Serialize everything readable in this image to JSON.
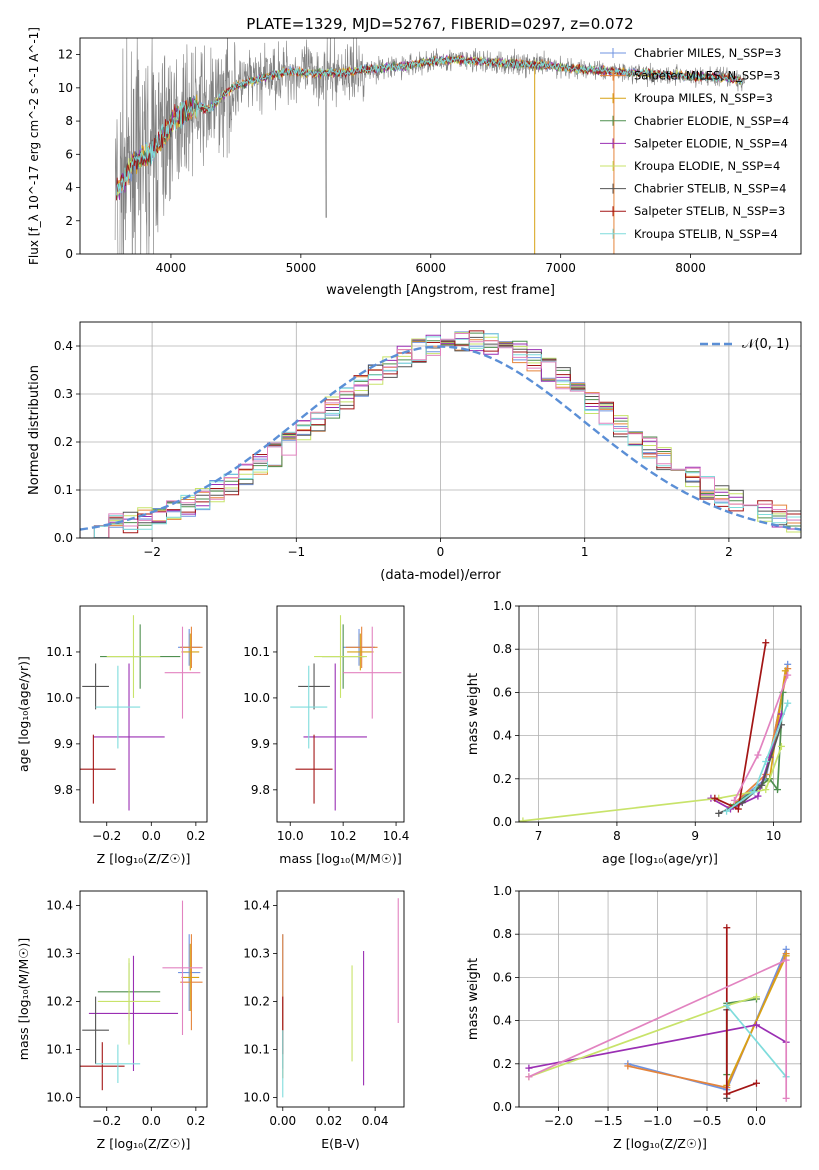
{
  "figure_title": "PLATE=1329, MJD=52767, FIBERID=0297, z=0.072",
  "colors": {
    "c_miles": "#6f93e0",
    "s_miles": "#e5843b",
    "k_miles": "#d7a216",
    "c_elodie": "#4f8f4f",
    "s_elodie": "#9a2fb3",
    "k_elodie": "#c8e36a",
    "c_stelib": "#555555",
    "s_stelib": "#a31515",
    "k_stelib": "#7fdcdc",
    "pink": "#e283c0",
    "gaussian": "#5b8fd6",
    "data_spectrum": "#808080"
  },
  "chart_data": [
    {
      "id": "spectrum",
      "type": "line",
      "title": "PLATE=1329, MJD=52767, FIBERID=0297, z=0.072",
      "xlabel": "wavelength [Angstrom, rest frame]",
      "ylabel": "Flux [f_λ 10^-17 erg cm^-2 s^-1 A^-1]",
      "xlim": [
        3300,
        8850
      ],
      "ylim": [
        0,
        13
      ],
      "xticks": [
        "4000",
        "5000",
        "6000",
        "7000",
        "8000"
      ],
      "yticks": [
        "0",
        "2",
        "4",
        "6",
        "8",
        "10",
        "12"
      ],
      "grid": false,
      "legend_position": "right",
      "legend": [
        {
          "label": "Chabrier MILES, N_SSP=3",
          "color": "#6f93e0"
        },
        {
          "label": "Salpeter MILES, N_SSP=3",
          "color": "#e5843b"
        },
        {
          "label": "Kroupa MILES, N_SSP=3",
          "color": "#d7a216"
        },
        {
          "label": "Chabrier ELODIE, N_SSP=4",
          "color": "#4f8f4f"
        },
        {
          "label": "Salpeter ELODIE, N_SSP=4",
          "color": "#9a2fb3"
        },
        {
          "label": "Kroupa ELODIE, N_SSP=4",
          "color": "#c8e36a"
        },
        {
          "label": "Chabrier STELIB, N_SSP=4",
          "color": "#555555"
        },
        {
          "label": "Salpeter STELIB, N_SSP=3",
          "color": "#a31515"
        },
        {
          "label": "Kroupa STELIB, N_SSP=4",
          "color": "#7fdcdc"
        }
      ],
      "continuum": {
        "wavelength": [
          3580,
          3650,
          3700,
          3800,
          3850,
          3900,
          3950,
          4000,
          4100,
          4200,
          4300,
          4400,
          4500,
          4700,
          4900,
          5100,
          5300,
          5500,
          5800,
          6000,
          6200,
          6500,
          6800,
          7200,
          7600,
          8000,
          8300,
          8400
        ],
        "flux": [
          3.8,
          4.6,
          5.5,
          5.8,
          6.2,
          6.6,
          7.2,
          7.8,
          8.6,
          8.9,
          8.7,
          9.6,
          10.1,
          10.6,
          11.0,
          10.9,
          10.9,
          11.1,
          11.3,
          11.6,
          11.7,
          11.5,
          11.4,
          11.1,
          10.9,
          10.7,
          10.6,
          10.4
        ]
      }
    },
    {
      "id": "residuals",
      "type": "step",
      "xlabel": "(data-model)/error",
      "ylabel": "Normed distribution",
      "xlim": [
        -2.5,
        2.5
      ],
      "ylim": [
        0,
        0.45
      ],
      "xticks": [
        "−2",
        "−1",
        "0",
        "1",
        "2"
      ],
      "yticks": [
        "0.0",
        "0.1",
        "0.2",
        "0.3",
        "0.4"
      ],
      "grid": true,
      "legend": [
        {
          "label": "𝒩(0, 1)",
          "color": "#5b8fd6"
        }
      ],
      "curve": "standard normal pdf",
      "bin_width": 0.1
    },
    {
      "id": "age_vs_Z",
      "type": "errorbar",
      "xlabel": "Z [log₁₀(Z/Z☉)]",
      "ylabel": "age  [log₁₀(age/yr)]",
      "xlim": [
        -0.32,
        0.25
      ],
      "ylim": [
        9.73,
        10.2
      ],
      "xticks": [
        "−0.2",
        "0.0",
        "0.2"
      ],
      "yticks": [
        "9.8",
        "9.9",
        "10.0",
        "10.1"
      ],
      "points": [
        {
          "x": 0.17,
          "y": 10.11,
          "xerr": 0.05,
          "yerr": 0.04,
          "color": "#6f93e0"
        },
        {
          "x": 0.18,
          "y": 10.11,
          "xerr": 0.05,
          "yerr": 0.045,
          "color": "#e5843b"
        },
        {
          "x": 0.175,
          "y": 10.1,
          "xerr": 0.04,
          "yerr": 0.04,
          "color": "#d7a216"
        },
        {
          "x": -0.05,
          "y": 10.09,
          "xerr": 0.18,
          "yerr": 0.07,
          "color": "#4f8f4f"
        },
        {
          "x": -0.1,
          "y": 9.915,
          "xerr": 0.16,
          "yerr": 0.16,
          "color": "#9a2fb3"
        },
        {
          "x": -0.08,
          "y": 10.09,
          "xerr": 0.12,
          "yerr": 0.09,
          "color": "#c8e36a"
        },
        {
          "x": -0.25,
          "y": 10.025,
          "xerr": 0.06,
          "yerr": 0.05,
          "color": "#555555"
        },
        {
          "x": -0.26,
          "y": 9.845,
          "xerr": 0.1,
          "yerr": 0.075,
          "color": "#a31515"
        },
        {
          "x": -0.15,
          "y": 9.98,
          "xerr": 0.1,
          "yerr": 0.09,
          "color": "#7fdcdc"
        },
        {
          "x": 0.14,
          "y": 10.055,
          "xerr": 0.08,
          "yerr": 0.1,
          "color": "#e283c0"
        }
      ]
    },
    {
      "id": "age_vs_mass",
      "type": "errorbar",
      "xlabel": "mass [log₁₀(M/M☉)]",
      "ylabel": "",
      "xlim": [
        9.95,
        10.43
      ],
      "ylim": [
        9.73,
        10.2
      ],
      "xticks": [
        "10.0",
        "10.2",
        "10.4"
      ],
      "yticks": [
        "9.8",
        "9.9",
        "10.0",
        "10.1"
      ],
      "points": [
        {
          "x": 10.26,
          "y": 10.11,
          "xerr": 0.06,
          "yerr": 0.04,
          "color": "#6f93e0"
        },
        {
          "x": 10.27,
          "y": 10.11,
          "xerr": 0.06,
          "yerr": 0.045,
          "color": "#e5843b"
        },
        {
          "x": 10.265,
          "y": 10.1,
          "xerr": 0.05,
          "yerr": 0.04,
          "color": "#d7a216"
        },
        {
          "x": 10.2,
          "y": 10.09,
          "xerr": 0.08,
          "yerr": 0.07,
          "color": "#4f8f4f"
        },
        {
          "x": 10.17,
          "y": 9.915,
          "xerr": 0.12,
          "yerr": 0.16,
          "color": "#9a2fb3"
        },
        {
          "x": 10.19,
          "y": 10.09,
          "xerr": 0.1,
          "yerr": 0.09,
          "color": "#c8e36a"
        },
        {
          "x": 10.09,
          "y": 10.025,
          "xerr": 0.06,
          "yerr": 0.05,
          "color": "#555555"
        },
        {
          "x": 10.09,
          "y": 9.845,
          "xerr": 0.07,
          "yerr": 0.075,
          "color": "#a31515"
        },
        {
          "x": 10.07,
          "y": 9.98,
          "xerr": 0.07,
          "yerr": 0.09,
          "color": "#7fdcdc"
        },
        {
          "x": 10.31,
          "y": 10.055,
          "xerr": 0.11,
          "yerr": 0.1,
          "color": "#e283c0"
        }
      ]
    },
    {
      "id": "massweight_vs_age",
      "type": "line",
      "xlabel": "age  [log₁₀(age/yr)]",
      "ylabel": "mass weight",
      "xlim": [
        6.75,
        10.35
      ],
      "ylim": [
        0,
        1
      ],
      "xticks": [
        "7",
        "8",
        "9",
        "10"
      ],
      "yticks": [
        "0.0",
        "0.2",
        "0.4",
        "0.6",
        "0.8",
        "1.0"
      ],
      "grid": true,
      "series": [
        {
          "color": "#6f93e0",
          "x": [
            9.45,
            9.9,
            10.18
          ],
          "y": [
            0.07,
            0.2,
            0.73
          ]
        },
        {
          "color": "#e5843b",
          "x": [
            9.45,
            9.9,
            10.18
          ],
          "y": [
            0.07,
            0.22,
            0.71
          ]
        },
        {
          "color": "#d7a216",
          "x": [
            9.5,
            9.95,
            10.15
          ],
          "y": [
            0.08,
            0.2,
            0.7
          ]
        },
        {
          "color": "#4f8f4f",
          "x": [
            9.5,
            9.95,
            10.05,
            10.12
          ],
          "y": [
            0.08,
            0.2,
            0.15,
            0.6
          ]
        },
        {
          "color": "#9a2fb3",
          "x": [
            9.2,
            9.45,
            9.8,
            9.95,
            10.1
          ],
          "y": [
            0.11,
            0.06,
            0.12,
            0.3,
            0.5
          ]
        },
        {
          "color": "#c8e36a",
          "x": [
            6.8,
            9.3,
            9.9,
            10.1
          ],
          "y": [
            0.005,
            0.11,
            0.15,
            0.35
          ]
        },
        {
          "color": "#555555",
          "x": [
            9.3,
            9.6,
            9.85,
            10.1
          ],
          "y": [
            0.04,
            0.09,
            0.17,
            0.45
          ]
        },
        {
          "color": "#a31515",
          "x": [
            9.25,
            9.55,
            9.9
          ],
          "y": [
            0.11,
            0.06,
            0.83
          ]
        },
        {
          "color": "#7fdcdc",
          "x": [
            9.4,
            9.75,
            9.9,
            10.18
          ],
          "y": [
            0.05,
            0.14,
            0.28,
            0.55
          ]
        },
        {
          "color": "#e283c0",
          "x": [
            9.5,
            9.8,
            10.18
          ],
          "y": [
            0.1,
            0.31,
            0.68
          ]
        }
      ]
    },
    {
      "id": "mass_vs_Z",
      "type": "errorbar",
      "xlabel": "Z [log₁₀(Z/Z☉)]",
      "ylabel": "mass [log₁₀(M/M☉)]",
      "xlim": [
        -0.32,
        0.25
      ],
      "ylim": [
        9.98,
        10.43
      ],
      "xticks": [
        "−0.2",
        "0.0",
        "0.2"
      ],
      "yticks": [
        "10.0",
        "10.1",
        "10.2",
        "10.3",
        "10.4"
      ],
      "points": [
        {
          "x": 0.17,
          "y": 10.26,
          "xerr": 0.05,
          "yerr": 0.08,
          "color": "#6f93e0"
        },
        {
          "x": 0.18,
          "y": 10.24,
          "xerr": 0.05,
          "yerr": 0.1,
          "color": "#e5843b"
        },
        {
          "x": 0.175,
          "y": 10.25,
          "xerr": 0.04,
          "yerr": 0.07,
          "color": "#d7a216"
        },
        {
          "x": -0.1,
          "y": 10.22,
          "xerr": 0.14,
          "yerr": 0.06,
          "color": "#4f8f4f"
        },
        {
          "x": -0.08,
          "y": 10.175,
          "xerr": 0.2,
          "yerr": 0.12,
          "color": "#9a2fb3"
        },
        {
          "x": -0.1,
          "y": 10.2,
          "xerr": 0.14,
          "yerr": 0.09,
          "color": "#c8e36a"
        },
        {
          "x": -0.25,
          "y": 10.14,
          "xerr": 0.06,
          "yerr": 0.07,
          "color": "#555555"
        },
        {
          "x": -0.22,
          "y": 10.065,
          "xerr": 0.1,
          "yerr": 0.05,
          "color": "#a31515"
        },
        {
          "x": -0.15,
          "y": 10.07,
          "xerr": 0.1,
          "yerr": 0.04,
          "color": "#7fdcdc"
        },
        {
          "x": 0.14,
          "y": 10.27,
          "xerr": 0.09,
          "yerr": 0.14,
          "color": "#e283c0"
        }
      ]
    },
    {
      "id": "mass_vs_ebv",
      "type": "errorbar",
      "xlabel": "E(B-V)",
      "ylabel": "",
      "xlim": [
        -0.0025,
        0.0525
      ],
      "ylim": [
        9.98,
        10.43
      ],
      "xticks": [
        "0.00",
        "0.02",
        "0.04"
      ],
      "yticks": [
        "10.0",
        "10.1",
        "10.2",
        "10.3",
        "10.4"
      ],
      "points": [
        {
          "x": 0.0,
          "y": 10.2,
          "xerr": 0,
          "yerr": 0.14,
          "color": "#6f93e0"
        },
        {
          "x": 0.0,
          "y": 10.19,
          "xerr": 0,
          "yerr": 0.15,
          "color": "#e5843b"
        },
        {
          "x": 0.0,
          "y": 10.15,
          "xerr": 0,
          "yerr": 0.06,
          "color": "#a31515"
        },
        {
          "x": 0.0,
          "y": 10.07,
          "xerr": 0,
          "yerr": 0.07,
          "color": "#7fdcdc"
        },
        {
          "x": 0.03,
          "y": 10.175,
          "xerr": 0,
          "yerr": 0.1,
          "color": "#c8e36a"
        },
        {
          "x": 0.035,
          "y": 10.165,
          "xerr": 0,
          "yerr": 0.14,
          "color": "#9a2fb3"
        },
        {
          "x": 0.05,
          "y": 10.285,
          "xerr": 0,
          "yerr": 0.13,
          "color": "#e283c0"
        }
      ]
    },
    {
      "id": "massweight_vs_Z",
      "type": "line",
      "xlabel": "Z [log₁₀(Z/Z☉)]",
      "ylabel": "mass weight",
      "xlim": [
        -2.4,
        0.45
      ],
      "ylim": [
        0,
        1
      ],
      "xticks": [
        "−2.0",
        "−1.5",
        "−1.0",
        "−0.5",
        "0.0"
      ],
      "yticks": [
        "0.0",
        "0.2",
        "0.4",
        "0.6",
        "0.8",
        "1.0"
      ],
      "grid": true,
      "series": [
        {
          "color": "#6f93e0",
          "x": [
            -1.3,
            -0.3,
            0.3
          ],
          "y": [
            0.2,
            0.08,
            0.73
          ]
        },
        {
          "color": "#e5843b",
          "x": [
            -1.3,
            -0.3,
            0.3
          ],
          "y": [
            0.19,
            0.09,
            0.71
          ]
        },
        {
          "color": "#d7a216",
          "x": [
            -0.3,
            0.3
          ],
          "y": [
            0.1,
            0.7
          ]
        },
        {
          "color": "#4f8f4f",
          "x": [
            -0.3,
            -0.3,
            0.0
          ],
          "y": [
            0.15,
            0.48,
            0.5
          ]
        },
        {
          "color": "#9a2fb3",
          "x": [
            -2.3,
            0.0,
            0.3
          ],
          "y": [
            0.18,
            0.38,
            0.3
          ]
        },
        {
          "color": "#c8e36a",
          "x": [
            -2.3,
            -0.3,
            0.0
          ],
          "y": [
            0.14,
            0.47,
            0.51
          ]
        },
        {
          "color": "#555555",
          "x": [
            -0.3,
            -0.3
          ],
          "y": [
            0.04,
            0.45
          ]
        },
        {
          "color": "#a31515",
          "x": [
            -0.3,
            -0.3,
            0.0
          ],
          "y": [
            0.83,
            0.06,
            0.11
          ]
        },
        {
          "color": "#7fdcdc",
          "x": [
            -0.3,
            0.3
          ],
          "y": [
            0.47,
            0.14
          ]
        },
        {
          "color": "#e283c0",
          "x": [
            -2.3,
            0.3,
            0.3
          ],
          "y": [
            0.14,
            0.68,
            0.04
          ]
        }
      ]
    }
  ]
}
